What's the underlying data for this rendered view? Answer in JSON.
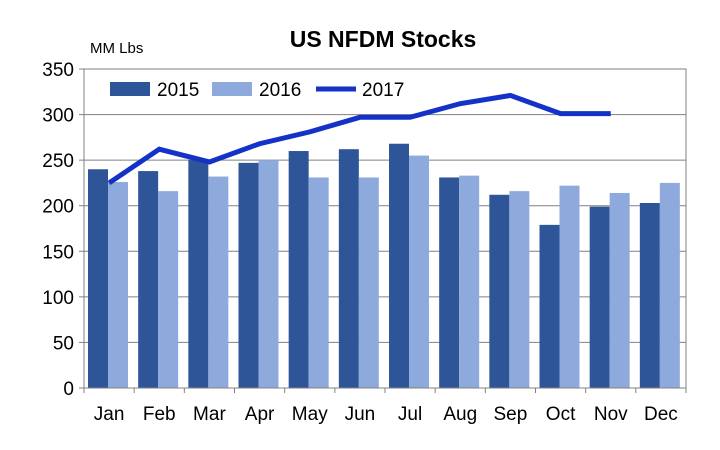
{
  "chart_data": {
    "type": "bar",
    "title": "US NFDM Stocks",
    "ylabel": "MM Lbs",
    "xlabel": "",
    "ylim": [
      0,
      350
    ],
    "yticks": [
      0,
      50,
      100,
      150,
      200,
      250,
      300,
      350
    ],
    "grid": true,
    "legend_position": "top-left",
    "categories": [
      "Jan",
      "Feb",
      "Mar",
      "Apr",
      "May",
      "Jun",
      "Jul",
      "Aug",
      "Sep",
      "Oct",
      "Nov",
      "Dec"
    ],
    "series": [
      {
        "name": "2015",
        "kind": "bar",
        "color": "#2E5597",
        "values": [
          240,
          238,
          250,
          247,
          260,
          262,
          268,
          231,
          212,
          179,
          199,
          203
        ]
      },
      {
        "name": "2016",
        "kind": "bar",
        "color": "#8EAADC",
        "values": [
          226,
          216,
          232,
          250,
          231,
          231,
          255,
          233,
          216,
          222,
          214,
          225
        ]
      },
      {
        "name": "2017",
        "kind": "line",
        "color": "#1432C8",
        "values": [
          225,
          262,
          248,
          268,
          281,
          297,
          297,
          312,
          321,
          301,
          301,
          null
        ]
      }
    ]
  }
}
